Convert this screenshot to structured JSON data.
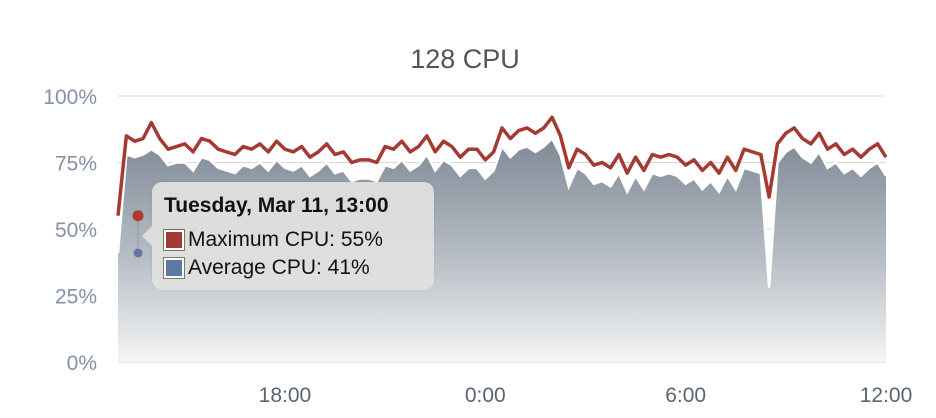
{
  "chart_data": {
    "type": "area",
    "title": "128 CPU",
    "x_tick_labels": [
      "18:00",
      "0:00",
      "6:00",
      "12:00"
    ],
    "y_tick_labels": [
      "100%",
      "75%",
      "50%",
      "25%",
      "0%"
    ],
    "ylim": [
      0,
      100
    ],
    "x_unit": "hour",
    "x": [
      13,
      13.25,
      13.5,
      13.75,
      14,
      14.25,
      14.5,
      14.75,
      15,
      15.25,
      15.5,
      15.75,
      16,
      16.25,
      16.5,
      16.75,
      17,
      17.25,
      17.5,
      17.75,
      18,
      18.25,
      18.5,
      18.75,
      19,
      19.25,
      19.5,
      19.75,
      20,
      20.25,
      20.5,
      20.75,
      21,
      21.25,
      21.5,
      21.75,
      22,
      22.25,
      22.5,
      22.75,
      23,
      23.25,
      23.5,
      23.75,
      24,
      24.25,
      24.5,
      24.75,
      25,
      25.25,
      25.5,
      25.75,
      26,
      26.25,
      26.5,
      26.75,
      27,
      27.25,
      27.5,
      27.75,
      28,
      28.25,
      28.5,
      28.75,
      29,
      29.25,
      29.5,
      29.75,
      30,
      30.25,
      30.5,
      30.75,
      31,
      31.25,
      31.5,
      31.75,
      32,
      32.25,
      32.5,
      32.75,
      33,
      33.25,
      33.5,
      33.75,
      34,
      34.25,
      34.5,
      34.75,
      35,
      35.25,
      35.5,
      35.75,
      36
    ],
    "series": [
      {
        "name": "Maximum CPU",
        "color": "#a33a33",
        "values": [
          55,
          85,
          83,
          84,
          90,
          84,
          80,
          81,
          82,
          79,
          84,
          83,
          80,
          79,
          78,
          81,
          80,
          82,
          79,
          83,
          80,
          79,
          81,
          77,
          79,
          82,
          78,
          79,
          75,
          76,
          76,
          75,
          81,
          80,
          83,
          79,
          81,
          85,
          79,
          83,
          81,
          77,
          80,
          80,
          76,
          79,
          88,
          84,
          87,
          88,
          86,
          88,
          92,
          85,
          73,
          80,
          78,
          74,
          75,
          73,
          78,
          71,
          77,
          72,
          78,
          77,
          78,
          77,
          74,
          76,
          72,
          75,
          71,
          77,
          72,
          80,
          79,
          78,
          62,
          82,
          86,
          88,
          84,
          82,
          86,
          80,
          82,
          78,
          80,
          77,
          80,
          82,
          77
        ],
        "color_marker": "#b03a30"
      },
      {
        "name": "Average CPU",
        "color": "#6078a0",
        "values": [
          41,
          78,
          77,
          78,
          80,
          78,
          74,
          75,
          75,
          72,
          77,
          76,
          73,
          72,
          71,
          74,
          73,
          75,
          72,
          76,
          73,
          72,
          74,
          70,
          72,
          75,
          71,
          72,
          68,
          69,
          69,
          68,
          74,
          73,
          76,
          72,
          74,
          78,
          72,
          76,
          74,
          70,
          73,
          73,
          69,
          72,
          81,
          77,
          80,
          81,
          79,
          81,
          84,
          78,
          66,
          73,
          71,
          67,
          68,
          66,
          71,
          64,
          70,
          65,
          71,
          70,
          71,
          70,
          67,
          69,
          65,
          68,
          64,
          70,
          65,
          73,
          72,
          71,
          28,
          75,
          79,
          81,
          77,
          75,
          79,
          73,
          75,
          71,
          73,
          70,
          73,
          75,
          70
        ]
      }
    ],
    "tooltip": {
      "title": "Tuesday, Mar 11, 13:00",
      "rows": [
        {
          "label": "Maximum CPU: 55%",
          "color": "#a33a33"
        },
        {
          "label": "Average CPU: 41%",
          "color": "#6078a0"
        }
      ]
    },
    "legend": "none",
    "grid": true
  }
}
